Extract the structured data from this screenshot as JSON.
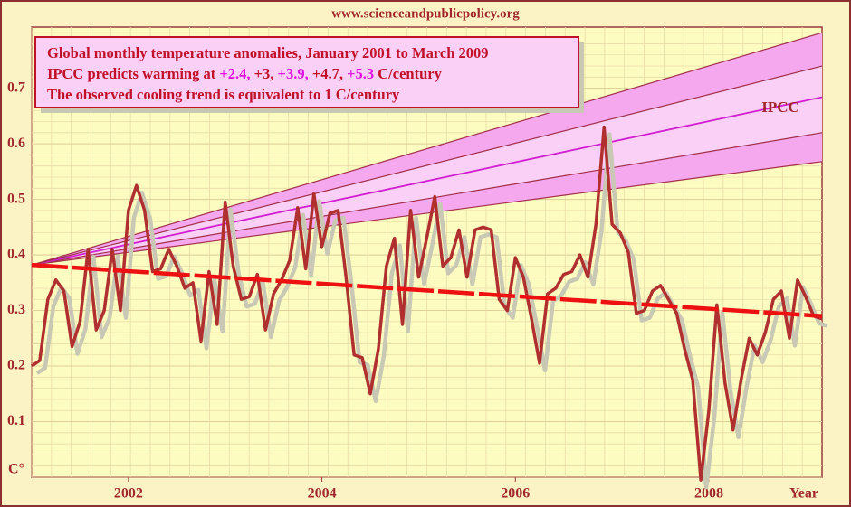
{
  "chart_data": {
    "type": "line",
    "source": "www.scienceandpublicpolicy.org",
    "title_lines": [
      [
        {
          "text": "Global monthly temperature anomalies, January 2001 to March 2009",
          "color": "#c0102a"
        }
      ],
      [
        {
          "text": "IPCC predicts warming at ",
          "color": "#c0102a"
        },
        {
          "text": "+2.4,",
          "color": "#e010e0"
        },
        {
          "text": " +3,",
          "color": "#c0102a"
        },
        {
          "text": " +3.9,",
          "color": "#e010e0"
        },
        {
          "text": " +4.7,",
          "color": "#c0102a"
        },
        {
          "text": " +5.3",
          "color": "#e010e0"
        },
        {
          "text": " C/century",
          "color": "#c0102a"
        }
      ],
      [
        {
          "text": "The observed cooling trend is equivalent to 1 C/century",
          "color": "#c0102a"
        }
      ]
    ],
    "ylabel": "C°",
    "xlabel": "Year",
    "ipcc_label": "IPCC",
    "x": [
      2001,
      2001.083,
      2001.167,
      2001.25,
      2001.333,
      2001.417,
      2001.5,
      2001.583,
      2001.667,
      2001.75,
      2001.833,
      2001.917,
      2002,
      2002.083,
      2002.167,
      2002.25,
      2002.333,
      2002.417,
      2002.5,
      2002.583,
      2002.667,
      2002.75,
      2002.833,
      2002.917,
      2003,
      2003.083,
      2003.167,
      2003.25,
      2003.333,
      2003.417,
      2003.5,
      2003.583,
      2003.667,
      2003.75,
      2003.833,
      2003.917,
      2004,
      2004.083,
      2004.167,
      2004.25,
      2004.333,
      2004.417,
      2004.5,
      2004.583,
      2004.667,
      2004.75,
      2004.833,
      2004.917,
      2005,
      2005.083,
      2005.167,
      2005.25,
      2005.333,
      2005.417,
      2005.5,
      2005.583,
      2005.667,
      2005.75,
      2005.833,
      2005.917,
      2006,
      2006.083,
      2006.167,
      2006.25,
      2006.333,
      2006.417,
      2006.5,
      2006.583,
      2006.667,
      2006.75,
      2006.833,
      2006.917,
      2007,
      2007.083,
      2007.167,
      2007.25,
      2007.333,
      2007.417,
      2007.5,
      2007.583,
      2007.667,
      2007.75,
      2007.833,
      2007.917,
      2008,
      2008.083,
      2008.167,
      2008.25,
      2008.333,
      2008.417,
      2008.5,
      2008.583,
      2008.667,
      2008.75,
      2008.833,
      2008.917,
      2009,
      2009.083,
      2009.167
    ],
    "series": [
      {
        "color": "#b03030",
        "shadow": "#c9c8b4",
        "values": [
          0.2,
          0.21,
          0.32,
          0.355,
          0.335,
          0.235,
          0.28,
          0.41,
          0.265,
          0.3,
          0.41,
          0.3,
          0.48,
          0.525,
          0.48,
          0.37,
          0.375,
          0.41,
          0.38,
          0.34,
          0.35,
          0.245,
          0.37,
          0.275,
          0.495,
          0.38,
          0.32,
          0.325,
          0.365,
          0.265,
          0.33,
          0.355,
          0.39,
          0.485,
          0.375,
          0.51,
          0.415,
          0.475,
          0.48,
          0.36,
          0.22,
          0.215,
          0.15,
          0.23,
          0.38,
          0.43,
          0.275,
          0.48,
          0.36,
          0.43,
          0.505,
          0.38,
          0.395,
          0.445,
          0.36,
          0.445,
          0.45,
          0.445,
          0.32,
          0.3,
          0.395,
          0.36,
          0.285,
          0.205,
          0.33,
          0.34,
          0.365,
          0.37,
          0.4,
          0.36,
          0.455,
          0.63,
          0.455,
          0.44,
          0.405,
          0.295,
          0.3,
          0.335,
          0.345,
          0.32,
          0.295,
          0.23,
          0.175,
          -0.005,
          0.12,
          0.31,
          0.17,
          0.085,
          0.175,
          0.25,
          0.22,
          0.26,
          0.32,
          0.335,
          0.25,
          0.355,
          0.325,
          0.29,
          0.285
        ]
      }
    ],
    "trend": {
      "color": "#ee1111",
      "x": [
        2001,
        2009.17
      ],
      "values": [
        0.382,
        0.29
      ]
    },
    "ipcc": {
      "x": [
        2001,
        2009.17
      ],
      "start": 0.382,
      "ends": [
        0.568,
        0.62,
        0.684,
        0.74,
        0.8
      ],
      "line_colors": [
        "#a0304a",
        "#a0304a",
        "#d020d0",
        "#a0304a",
        "#a0304a"
      ],
      "band_colors": [
        "#f6a8ee",
        "#fbd0f6",
        "#fbd0f6",
        "#f6a8ee"
      ]
    },
    "xlim": [
      2001,
      2009.17
    ],
    "ylim": [
      0,
      0.81
    ],
    "xticks": [
      2002,
      2004,
      2006,
      2008
    ],
    "yticks": [
      0.1,
      0.2,
      0.3,
      0.4,
      0.5,
      0.6,
      0.7
    ],
    "grid": true
  }
}
